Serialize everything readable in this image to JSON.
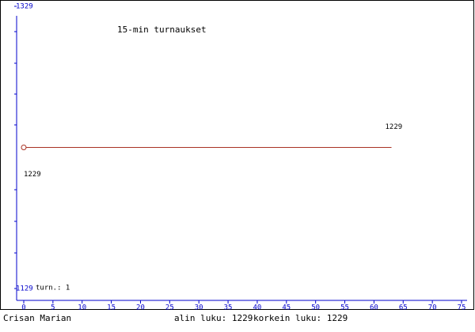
{
  "chart_data": {
    "type": "line",
    "title": "15-min turnaukset",
    "x": [
      0,
      63
    ],
    "values": [
      1229,
      1229
    ],
    "color": "#a83224",
    "xlim": [
      0,
      75
    ],
    "xticks": [
      0,
      5,
      10,
      15,
      20,
      25,
      30,
      35,
      40,
      45,
      50,
      55,
      60,
      65,
      70,
      75
    ],
    "ylim": [
      1129,
      1329
    ],
    "yticks": [
      1129,
      1329
    ],
    "grid": false,
    "games": "turn.: 1",
    "player": "Crisan Marian",
    "low": "alin luku: 1229",
    "high": "korkein luku: 1229"
  }
}
